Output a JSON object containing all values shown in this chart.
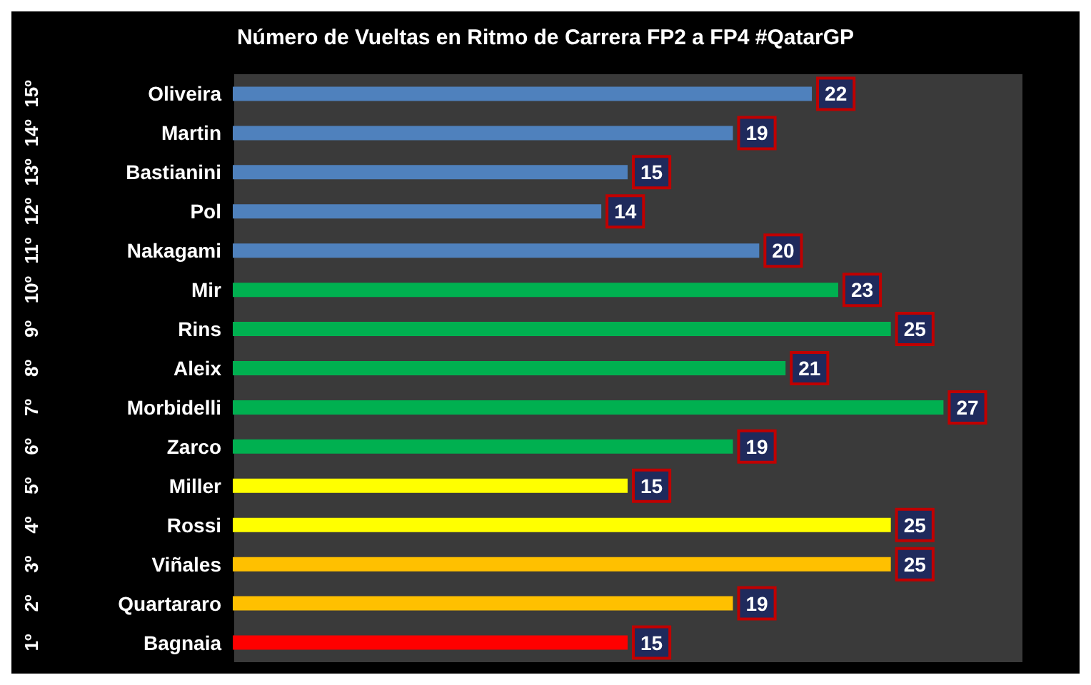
{
  "chart_data": {
    "type": "bar",
    "orientation": "horizontal",
    "title": "Número de Vueltas en Ritmo de Carrera FP2 a FP4 #QatarGP",
    "categories": [
      "Oliveira",
      "Martin",
      "Bastianini",
      "Pol",
      "Nakagami",
      "Mir",
      "Rins",
      "Aleix",
      "Morbidelli",
      "Zarco",
      "Miller",
      "Rossi",
      "Viñales",
      "Quartararo",
      "Bagnaia"
    ],
    "values": [
      22,
      19,
      15,
      14,
      20,
      23,
      25,
      21,
      27,
      19,
      15,
      25,
      25,
      19,
      15
    ],
    "colors": [
      "#4f81bd",
      "#4f81bd",
      "#4f81bd",
      "#4f81bd",
      "#4f81bd",
      "#00b050",
      "#00b050",
      "#00b050",
      "#00b050",
      "#00b050",
      "#ffff00",
      "#ffff00",
      "#ffc000",
      "#ffc000",
      "#ff0000"
    ],
    "data_labels": true,
    "tick_labels": "y",
    "annotations": [
      "15º",
      "14º",
      "13º",
      "12º",
      "11º",
      "10º",
      "9º",
      "8º",
      "7º",
      "6º",
      "5º",
      "4º",
      "3º",
      "2º",
      "1º"
    ]
  }
}
